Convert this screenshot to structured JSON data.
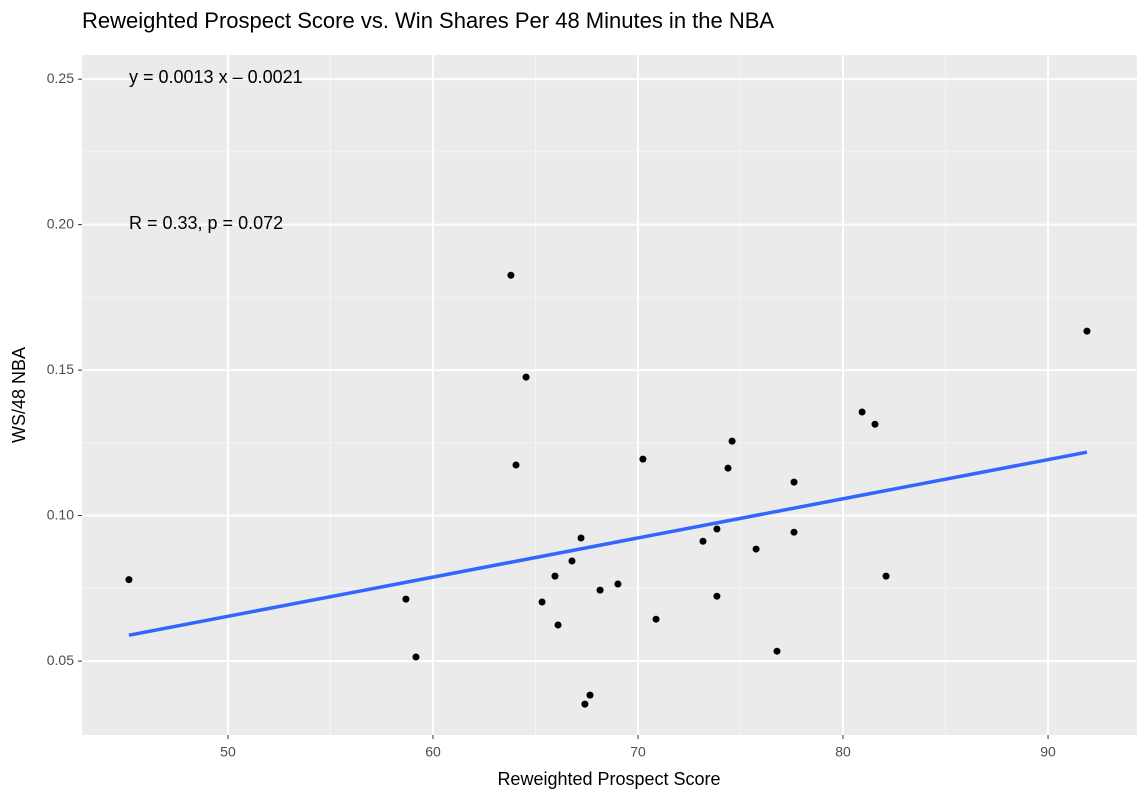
{
  "chart_data": {
    "type": "scatter",
    "title": "Reweighted Prospect Score vs. Win Shares Per 48 Minutes in the NBA",
    "x_label": "Reweighted Prospect Score",
    "y_label": "WS/48 NBA",
    "annotations": [
      "y = 0.0013 x – 0.0021",
      "R = 0.33, p = 0.072"
    ],
    "x": [
      45.17,
      58.68,
      59.17,
      63.8,
      64.05,
      64.54,
      65.32,
      65.95,
      66.1,
      66.78,
      67.22,
      67.41,
      67.66,
      68.15,
      69.02,
      70.24,
      70.88,
      73.17,
      73.85,
      73.85,
      74.39,
      74.59,
      75.76,
      76.78,
      77.61,
      77.61,
      80.93,
      81.56,
      82.1,
      91.9
    ],
    "values": [
      0.078,
      0.0713,
      0.0514,
      0.1826,
      0.1174,
      0.1476,
      0.0703,
      0.0792,
      0.0624,
      0.0844,
      0.0923,
      0.0352,
      0.0383,
      0.0744,
      0.0765,
      0.1194,
      0.0644,
      0.0912,
      0.0954,
      0.0723,
      0.1163,
      0.1256,
      0.0885,
      0.0534,
      0.1115,
      0.0943,
      0.1356,
      0.1314,
      0.0792,
      0.1634
    ],
    "color": "#000000",
    "fit": {
      "x": [
        45.17,
        91.9
      ],
      "values": [
        0.0589,
        0.1218
      ],
      "color": "#3366FF"
    },
    "xlim": [
      42.88,
      94.34
    ],
    "ylim": [
      0.0246,
      0.2583
    ],
    "xticks": [
      50,
      60,
      70,
      80,
      90
    ],
    "yticks": [
      {
        "value": 0.05,
        "label": "0.05"
      },
      {
        "value": 0.1,
        "label": "0.10"
      },
      {
        "value": 0.15,
        "label": "0.15"
      },
      {
        "value": 0.2,
        "label": "0.20"
      },
      {
        "value": 0.25,
        "label": "0.25"
      }
    ],
    "grid": true
  }
}
